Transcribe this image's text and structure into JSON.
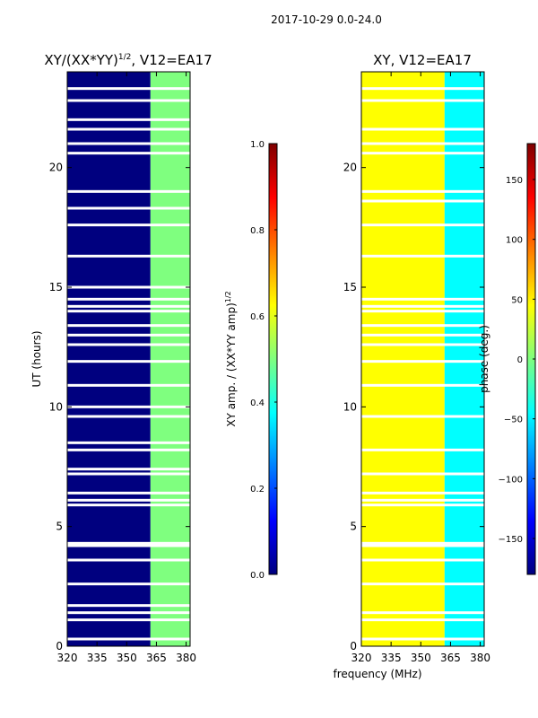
{
  "suptitle": "2017-10-29 0.0-24.0",
  "xlabel_shared": "frequency (MHz)",
  "colors": {
    "jet": [
      "#00007f",
      "#0000ff",
      "#007fff",
      "#00ffff",
      "#7fff7f",
      "#ffff00",
      "#ff7f00",
      "#ff0000",
      "#7f0000"
    ]
  },
  "chart_data": [
    {
      "type": "heatmap",
      "title_main": "XY/(XX*YY)",
      "title_sup": "1/2",
      "title_tail": ", V12=EA17",
      "xlabel": "",
      "ylabel": "UT (hours)",
      "xlim": [
        320,
        382
      ],
      "ylim": [
        0,
        24
      ],
      "xticks": [
        320,
        335,
        350,
        365,
        380
      ],
      "yticks": [
        0,
        5,
        10,
        15,
        20
      ],
      "colormap": "jet",
      "clim": [
        0.0,
        1.0
      ],
      "colorbar": {
        "label_main": "XY amp. / (XX*YY amp)",
        "label_sup": "1/2",
        "ticks": [
          "0.0",
          "0.2",
          "0.4",
          "0.6",
          "0.8",
          "1.0"
        ],
        "tick_values": [
          0.0,
          0.2,
          0.4,
          0.6,
          0.8,
          1.0
        ]
      },
      "bands": [
        {
          "from": 320,
          "to": 362,
          "level": 0.05
        },
        {
          "from": 362,
          "to": 382,
          "level": 0.45
        }
      ],
      "flag_gaps_hours": [
        0.3,
        1.1,
        1.4,
        1.7,
        2.6,
        3.6,
        4.2,
        4.3,
        5.9,
        6.1,
        6.4,
        7.2,
        7.4,
        8.2,
        8.5,
        9.6,
        10.0,
        10.9,
        11.9,
        12.6,
        13.0,
        13.4,
        14.0,
        14.2,
        14.5,
        15.0,
        16.3,
        17.6,
        18.3,
        19.0,
        20.6,
        21.0,
        21.6,
        22.0,
        22.8,
        23.3
      ]
    },
    {
      "type": "heatmap",
      "title_main": "XY, V12=EA17",
      "xlabel": "",
      "ylabel": "",
      "xlim": [
        320,
        382
      ],
      "ylim": [
        0,
        24
      ],
      "xticks": [
        320,
        335,
        350,
        365,
        380
      ],
      "yticks": [
        0,
        5,
        10,
        15,
        20
      ],
      "colormap": "jet",
      "clim": [
        -180,
        180
      ],
      "colorbar": {
        "label_main": "phase (deg.)",
        "ticks": [
          "−150",
          "−100",
          "−50",
          "0",
          "50",
          "100",
          "150"
        ],
        "tick_values": [
          -150,
          -100,
          -50,
          0,
          50,
          100,
          150
        ]
      },
      "bands": [
        {
          "from": 320,
          "to": 362,
          "level": 0.62
        },
        {
          "from": 362,
          "to": 382,
          "level": 0.4
        }
      ],
      "flag_gaps_hours": [
        0.3,
        1.1,
        1.4,
        2.6,
        3.6,
        4.2,
        4.3,
        5.9,
        6.1,
        6.4,
        7.2,
        8.2,
        9.6,
        10.9,
        11.9,
        12.6,
        13.0,
        13.4,
        14.0,
        14.2,
        14.5,
        16.3,
        17.6,
        18.6,
        19.0,
        20.6,
        21.0,
        21.6,
        22.8,
        23.3
      ]
    }
  ]
}
